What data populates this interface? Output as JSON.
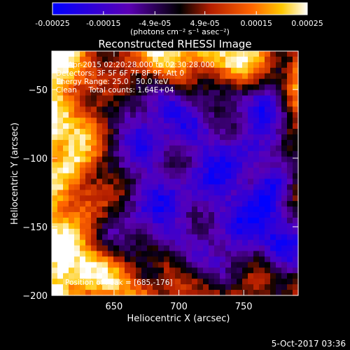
{
  "chart_data": {
    "type": "heatmap",
    "title": "Reconstructed RHESSI Image",
    "xlabel": "Heliocentric X (arcsec)",
    "ylabel": "Heliocentric Y (arcsec)",
    "xlim": [
      602,
      792
    ],
    "ylim": [
      -200,
      -22
    ],
    "x_ticks": [
      650,
      700,
      750
    ],
    "y_ticks": [
      -50,
      -100,
      -150,
      -200
    ],
    "colorbar": {
      "range": [
        -0.00025,
        0.00025
      ],
      "tick_values": [
        -0.00025,
        -0.00015,
        -4.9e-05,
        4.9e-05,
        0.00015,
        0.00025
      ],
      "tick_labels": [
        "-0.00025",
        "-0.00015",
        "-4.9e-05",
        "4.9e-05",
        "0.00015",
        "0.00025"
      ],
      "unit_label": "(photons cm⁻² s⁻¹ asec⁻²)",
      "colormap": [
        "#0000ff",
        "#5b00b4",
        "#000000",
        "#b41e00",
        "#ff6400",
        "#ffc800",
        "#ffffff"
      ]
    },
    "annotations": [
      "26-Apr-2015 02:20:28.000 to 02:30:28.000",
      "Detectors: 3F 5F 6F 7F 8F 9F, Att 0",
      "Energy Range: 25.0 - 50.0 keV",
      "Clean     Total counts: 1.64E+04",
      "Position of Peak = [685,-176]"
    ],
    "grid": false
  },
  "footer": {
    "timestamp": "5-Oct-2017 03:36"
  }
}
